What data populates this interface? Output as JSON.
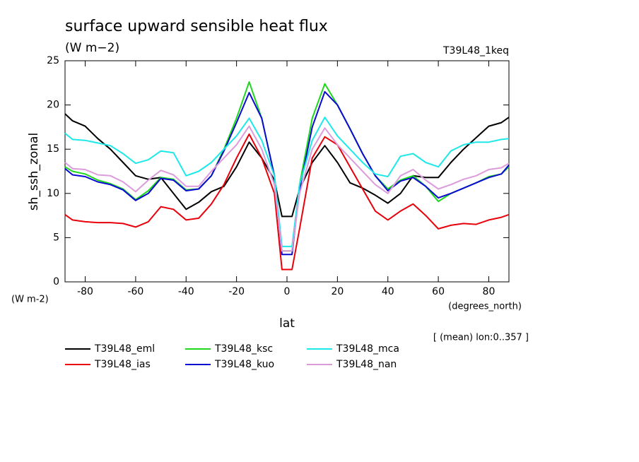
{
  "chart_data": {
    "type": "line",
    "title": "surface upward sensible heat flux",
    "subtitle": "(W m−2)",
    "annotation": "T39L48_1keq",
    "y_label": "sh_ssh_zonal",
    "y_unit": "(W m-2)",
    "x_label": "lat",
    "x_unit": "(degrees_north)",
    "footnote": "[ (mean) lon:0..357 ]",
    "x": [
      -88,
      -85,
      -80,
      -75,
      -70,
      -65,
      -60,
      -55,
      -50,
      -45,
      -40,
      -35,
      -30,
      -25,
      -20,
      -15,
      -10,
      -5,
      -2,
      0,
      2,
      5,
      10,
      15,
      20,
      25,
      30,
      35,
      40,
      45,
      50,
      55,
      60,
      65,
      70,
      75,
      80,
      85,
      88
    ],
    "xlim": [
      -88,
      88
    ],
    "ylim": [
      0,
      25
    ],
    "xticks": [
      -80,
      -60,
      -40,
      -20,
      0,
      20,
      40,
      60,
      80
    ],
    "yticks": [
      0,
      5,
      10,
      15,
      20,
      25
    ],
    "series": [
      {
        "name": "T39L48_eml",
        "color": "#000000",
        "values": [
          19,
          18.2,
          17.6,
          16.2,
          15,
          13.5,
          12,
          11.6,
          11.8,
          10,
          8.2,
          9,
          10.2,
          10.8,
          13,
          15.8,
          14,
          11.5,
          7.4,
          7.4,
          7.4,
          10.5,
          13.5,
          15.4,
          13.5,
          11.2,
          10.6,
          9.8,
          8.9,
          10,
          12,
          11.8,
          11.8,
          13.5,
          15,
          16.3,
          17.6,
          18,
          18.6
        ]
      },
      {
        "name": "T39L48_ias",
        "color": "#e8000b",
        "values": [
          7.6,
          7.0,
          6.8,
          6.7,
          6.7,
          6.6,
          6.2,
          6.8,
          8.5,
          8.2,
          7,
          7.2,
          8.8,
          11,
          14,
          16.7,
          14,
          10,
          1.4,
          1.4,
          1.4,
          6,
          14,
          16.4,
          15.5,
          13,
          10.5,
          8,
          7,
          8,
          8.8,
          7.5,
          6,
          6.4,
          6.6,
          6.5,
          7,
          7.3,
          7.6
        ]
      },
      {
        "name": "T39L48_ksc",
        "color": "#1ed81e",
        "values": [
          13,
          12.5,
          12.2,
          11.5,
          11.1,
          10.5,
          9.3,
          10.3,
          11.8,
          11.6,
          10.4,
          10.5,
          12,
          15,
          18.5,
          22.6,
          18.5,
          12,
          3.5,
          3.5,
          3.5,
          11,
          18.5,
          22.4,
          20,
          17.3,
          14.5,
          12,
          10.5,
          11.5,
          12,
          10.8,
          9.1,
          10,
          10.6,
          11.2,
          11.9,
          12.2,
          13
        ]
      },
      {
        "name": "T39L48_kuo",
        "color": "#0a0ad0",
        "values": [
          12.8,
          12.1,
          11.9,
          11.3,
          11,
          10.4,
          9.2,
          10,
          11.7,
          11.5,
          10.3,
          10.5,
          12,
          14.8,
          18,
          21.4,
          18.5,
          12,
          3.1,
          3.1,
          3.1,
          10.5,
          17.5,
          21.5,
          20,
          17.3,
          14.5,
          12,
          10.3,
          11.4,
          11.8,
          10.8,
          9.5,
          10,
          10.6,
          11.2,
          11.8,
          12.2,
          13.2
        ]
      },
      {
        "name": "T39L48_mca",
        "color": "#1ee8e8",
        "values": [
          16.8,
          16.1,
          16,
          15.7,
          15.4,
          14.5,
          13.4,
          13.8,
          14.8,
          14.6,
          12,
          12.5,
          13.5,
          15,
          16.5,
          18.5,
          16,
          12,
          4,
          4,
          4,
          11,
          16,
          18.6,
          16.5,
          15,
          13.5,
          12.2,
          11.9,
          14.2,
          14.5,
          13.5,
          13,
          14.8,
          15.5,
          15.8,
          15.8,
          16.1,
          16.2
        ]
      },
      {
        "name": "T39L48_nan",
        "color": "#dc9cdc",
        "values": [
          13.5,
          12.8,
          12.7,
          12.1,
          12,
          11.3,
          10.2,
          11.5,
          12.6,
          12.1,
          10.8,
          10.8,
          12.5,
          14,
          15.5,
          17.6,
          15,
          11,
          3.5,
          3.5,
          3.5,
          10,
          15,
          17.4,
          15.5,
          14,
          12.5,
          11,
          10,
          12,
          12.7,
          11.5,
          10.5,
          11,
          11.6,
          12,
          12.7,
          12.9,
          13.4
        ]
      }
    ]
  }
}
